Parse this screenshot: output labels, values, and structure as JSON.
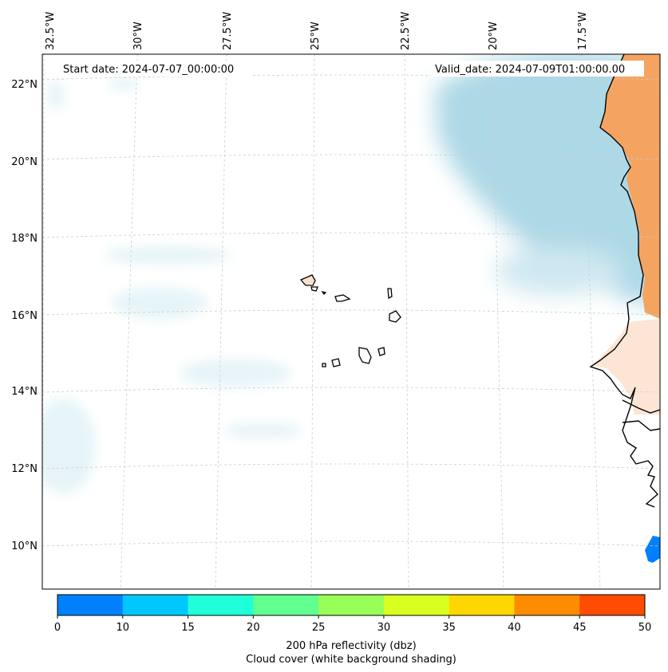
{
  "map": {
    "start_label": "Start date: 2024-07-07_00:00:00",
    "valid_label": "Valid_date: 2024-07-09T01:00:00.00",
    "lon_labels": [
      "32.5°W",
      "30°W",
      "27.5°W",
      "25°W",
      "22.5°W",
      "20°W",
      "17.5°W"
    ],
    "lat_labels": [
      "22°N",
      "20°N",
      "18°N",
      "16°N",
      "14°N",
      "12°N",
      "10°N"
    ],
    "colors": {
      "cloud_light": "#e6f4f8",
      "cloud_mid": "#cfe8f0",
      "cloud_dense": "#add8e6",
      "land_warm": "#f4a460",
      "land_pale": "#fbe0cc",
      "coastline": "#000000",
      "gridline": "#cccccc"
    }
  },
  "colorbar": {
    "ticks": [
      "0",
      "10",
      "15",
      "20",
      "25",
      "30",
      "35",
      "40",
      "45",
      "50"
    ],
    "colors": [
      "#0080ff",
      "#00c8ff",
      "#20ffd8",
      "#60ff90",
      "#98ff58",
      "#d8ff20",
      "#ffd700",
      "#ff8c00",
      "#ff4c00"
    ],
    "label_line1": "200 hPa reflectivity (dbz)",
    "label_line2": "Cloud cover (white background shading)"
  }
}
